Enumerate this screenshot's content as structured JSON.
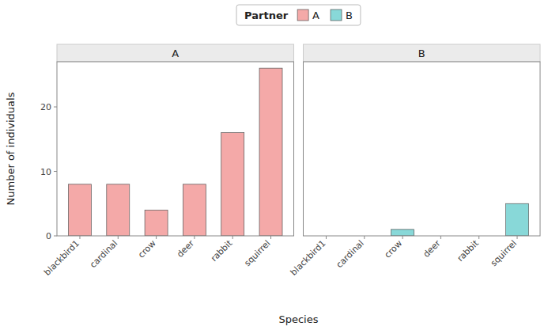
{
  "chart_data": [
    {
      "type": "bar",
      "title": "A",
      "categories": [
        "blackbird1",
        "cardinal",
        "crow",
        "deer",
        "rabbit",
        "squirrel"
      ],
      "series": [
        {
          "name": "A",
          "color": "#F4A9A8",
          "values": [
            8,
            8,
            4,
            8,
            16,
            26
          ]
        }
      ],
      "xlabel": "Species",
      "ylabel": "Number of individuals",
      "legend_title": "Partner",
      "legend": "top",
      "ylim": [
        0,
        27
      ],
      "yticks": [
        0,
        10,
        20
      ],
      "grid": false
    },
    {
      "type": "bar",
      "title": "B",
      "categories": [
        "blackbird1",
        "cardinal",
        "crow",
        "deer",
        "rabbit",
        "squirrel"
      ],
      "series": [
        {
          "name": "B",
          "color": "#88D8D8",
          "values": [
            0,
            0,
            1,
            0,
            0,
            5
          ]
        }
      ],
      "ylim": [
        0,
        27
      ],
      "yticks": [
        0,
        10,
        20
      ],
      "grid": false,
      "tick_labels": "x"
    }
  ]
}
